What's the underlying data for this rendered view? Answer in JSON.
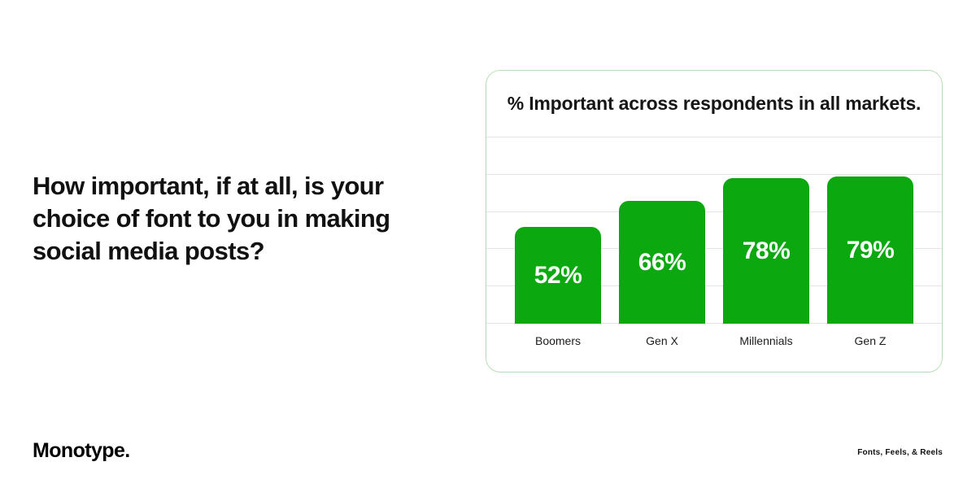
{
  "page": {
    "question": {
      "full": "How important, if at all, is your choice of font to you in making social media posts?",
      "lines": [
        "How important, if at all, is your",
        "choice of font to you in making",
        "social media posts?"
      ]
    },
    "brand": "Monotype.",
    "footnote": "Fonts, Feels, & Reels"
  },
  "chart_data": {
    "type": "bar",
    "title": "% Important across respondents in all markets.",
    "categories": [
      "Boomers",
      "Gen X",
      "Millennials",
      "Gen Z"
    ],
    "values": [
      52,
      66,
      78,
      79
    ],
    "value_labels": [
      "52%",
      "66%",
      "78%",
      "79%"
    ],
    "xlabel": "",
    "ylabel": "% Important",
    "ylim": [
      0,
      100
    ],
    "grid": "horizontal",
    "gridline_step": 20,
    "legend": "none",
    "colors": {
      "bar": "#0ba80f",
      "bar_value_text": "#ffffff",
      "card_border": "#b5dfb2",
      "gridline": "#e4e4e4",
      "text": "#111111"
    }
  }
}
